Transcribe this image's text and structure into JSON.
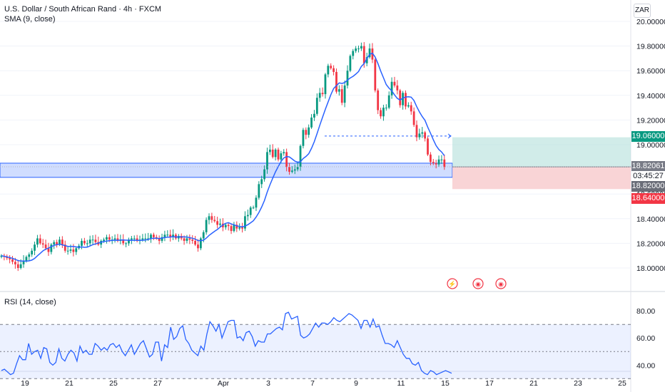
{
  "header": {
    "title": "U.S. Dollar / South African Rand · 4h · FXCM",
    "indicator": "SMA (9, close)",
    "currency": "ZAR"
  },
  "rsi_panel": {
    "title": "RSI (14, close)"
  },
  "badges": {
    "target": "19.06000",
    "current_price": "18.82061",
    "countdown": "03:45:27",
    "entry": "18.82000",
    "stop": "18.64000"
  },
  "colors": {
    "up": "#089981",
    "down": "#f23645",
    "sma": "#2962ff",
    "rsi": "#2962ff",
    "zone": "#2962ff",
    "profit": "#b2dfdb",
    "loss": "#f8c9cc",
    "grid": "#f0f3fa"
  },
  "chart_data": [
    {
      "type": "candlestick",
      "title": "U.S. Dollar / South African Rand · 4h · FXCM",
      "ylim": [
        17.88,
        20.06
      ],
      "y_ticks": [
        "20.00000",
        "19.80000",
        "19.60000",
        "19.40000",
        "19.20000",
        "19.00000",
        "18.60000",
        "18.40000",
        "18.20000",
        "18.00000"
      ],
      "x_ticks": [
        "19",
        "21",
        "25",
        "27",
        "Apr",
        "3",
        "7",
        "9",
        "11",
        "15",
        "17",
        "21",
        "23",
        "25"
      ],
      "close": [
        18.1,
        18.09,
        18.08,
        18.07,
        18.05,
        18.03,
        18.0,
        18.03,
        18.06,
        18.09,
        18.11,
        18.14,
        18.19,
        18.24,
        18.2,
        18.19,
        18.16,
        18.13,
        18.19,
        18.21,
        18.19,
        18.23,
        18.19,
        18.14,
        18.14,
        18.15,
        18.13,
        18.16,
        18.18,
        18.22,
        18.2,
        18.2,
        18.23,
        18.23,
        18.21,
        18.19,
        18.22,
        18.23,
        18.25,
        18.23,
        18.23,
        18.24,
        18.22,
        18.23,
        18.2,
        18.2,
        18.23,
        18.24,
        18.24,
        18.22,
        18.23,
        18.24,
        18.24,
        18.24,
        18.27,
        18.25,
        18.24,
        18.22,
        18.25,
        18.27,
        18.27,
        18.25,
        18.27,
        18.24,
        18.26,
        18.24,
        18.22,
        18.24,
        18.23,
        18.22,
        18.19,
        18.16,
        18.24,
        18.29,
        18.39,
        18.42,
        18.39,
        18.38,
        18.35,
        18.36,
        18.33,
        18.35,
        18.34,
        18.3,
        18.35,
        18.32,
        18.33,
        18.32,
        18.42,
        18.43,
        18.49,
        18.49,
        18.57,
        18.68,
        18.72,
        18.8,
        18.94,
        18.96,
        18.9,
        18.96,
        18.88,
        18.93,
        18.94,
        18.82,
        18.78,
        18.79,
        18.8,
        18.82,
        18.99,
        19.12,
        19.08,
        19.14,
        19.22,
        19.25,
        19.38,
        19.42,
        19.41,
        19.57,
        19.64,
        19.62,
        19.59,
        19.43,
        19.45,
        19.34,
        19.48,
        19.6,
        19.72,
        19.76,
        19.78,
        19.78,
        19.8,
        19.66,
        19.71,
        19.78,
        19.69,
        19.44,
        19.28,
        19.23,
        19.3,
        19.3,
        19.4,
        19.51,
        19.48,
        19.44,
        19.32,
        19.42,
        19.31,
        19.32,
        19.27,
        19.16,
        19.06,
        19.09,
        19.1,
        19.05,
        18.92,
        18.86,
        18.85,
        18.84,
        18.88,
        18.88,
        18.82
      ]
    },
    {
      "type": "line",
      "title": "RSI (14, close)",
      "ylim": [
        27,
        88
      ],
      "y_ticks": [
        "80.00",
        "60.00",
        "40.00"
      ],
      "bands": [
        30,
        50,
        70
      ],
      "values": [
        36,
        37,
        35,
        33,
        34,
        41,
        47,
        44,
        44,
        56,
        48,
        50,
        51,
        45,
        53,
        52,
        42,
        40,
        42,
        52,
        45,
        43,
        48,
        51,
        49,
        43,
        54,
        49,
        51,
        48,
        48,
        56,
        54,
        51,
        53,
        51,
        55,
        56,
        53,
        55,
        50,
        47,
        51,
        55,
        48,
        52,
        56,
        58,
        52,
        46,
        48,
        57,
        57,
        43,
        55,
        53,
        68,
        59,
        61,
        67,
        69,
        59,
        56,
        51,
        49,
        47,
        54,
        51,
        63,
        72,
        69,
        65,
        70,
        60,
        66,
        72,
        73,
        73,
        60,
        61,
        58,
        64,
        65,
        61,
        54,
        58,
        57,
        57,
        63,
        63,
        65,
        67,
        68,
        66,
        78,
        79,
        74,
        75,
        76,
        62,
        60,
        61,
        63,
        67,
        71,
        68,
        71,
        71,
        70,
        72,
        75,
        73,
        72,
        74,
        76,
        78,
        77,
        75,
        73,
        67,
        73,
        73,
        68,
        74,
        68,
        69,
        62,
        56,
        56,
        55,
        53,
        58,
        53,
        48,
        45,
        45,
        41,
        40,
        42,
        36,
        34,
        33,
        36,
        35,
        33,
        34,
        35,
        36,
        35,
        34
      ]
    }
  ]
}
